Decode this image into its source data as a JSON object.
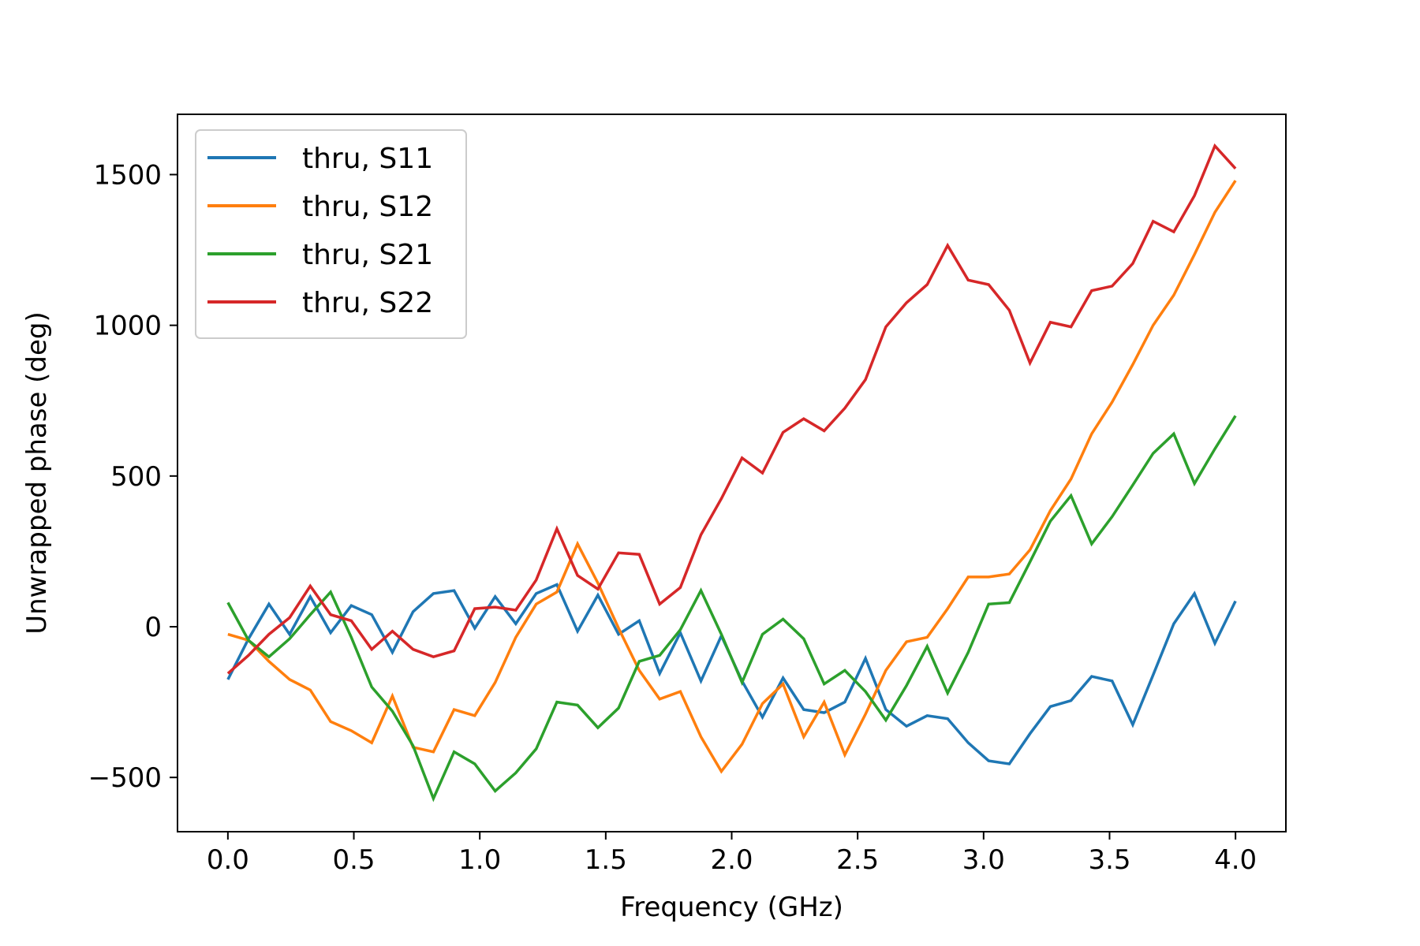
{
  "chart_data": {
    "type": "line",
    "title": "",
    "xlabel": "Frequency (GHz)",
    "ylabel": "Unwrapped phase (deg)",
    "xlim": [
      -0.2,
      4.2
    ],
    "ylim": [
      -680,
      1700
    ],
    "xticks": [
      0.0,
      0.5,
      1.0,
      1.5,
      2.0,
      2.5,
      3.0,
      3.5,
      4.0
    ],
    "xtick_labels": [
      "0.0",
      "0.5",
      "1.0",
      "1.5",
      "2.0",
      "2.5",
      "3.0",
      "3.5",
      "4.0"
    ],
    "yticks": [
      -500,
      0,
      500,
      1000,
      1500
    ],
    "ytick_labels": [
      "−500",
      "0",
      "500",
      "1000",
      "1500"
    ],
    "grid": false,
    "legend_position": "upper-left",
    "x": [
      0.0,
      0.082,
      0.163,
      0.245,
      0.327,
      0.408,
      0.49,
      0.571,
      0.653,
      0.735,
      0.816,
      0.898,
      0.98,
      1.061,
      1.143,
      1.224,
      1.306,
      1.388,
      1.469,
      1.551,
      1.633,
      1.714,
      1.796,
      1.878,
      1.959,
      2.041,
      2.122,
      2.204,
      2.286,
      2.367,
      2.449,
      2.531,
      2.612,
      2.694,
      2.776,
      2.857,
      2.939,
      3.02,
      3.102,
      3.184,
      3.265,
      3.347,
      3.429,
      3.51,
      3.592,
      3.673,
      3.755,
      3.837,
      3.918,
      4.0
    ],
    "series": [
      {
        "name": "thru, S11",
        "color": "#1f77b4",
        "values": [
          -175,
          -40,
          75,
          -25,
          100,
          -20,
          70,
          40,
          -85,
          50,
          110,
          120,
          -5,
          100,
          10,
          110,
          140,
          -15,
          105,
          -25,
          20,
          -155,
          -20,
          -180,
          -30,
          -180,
          -300,
          -170,
          -275,
          -285,
          -250,
          -105,
          -275,
          -330,
          -295,
          -305,
          -385,
          -445,
          -455,
          -355,
          -265,
          -245,
          -165,
          -180,
          -325,
          -160,
          10,
          110,
          -55,
          85
        ]
      },
      {
        "name": "thru, S12",
        "color": "#ff7f0e",
        "values": [
          -25,
          -45,
          -115,
          -175,
          -210,
          -315,
          -345,
          -385,
          -230,
          -400,
          -415,
          -275,
          -295,
          -185,
          -35,
          75,
          115,
          275,
          145,
          -5,
          -145,
          -240,
          -215,
          -365,
          -480,
          -390,
          -255,
          -190,
          -365,
          -250,
          -425,
          -290,
          -145,
          -50,
          -35,
          60,
          165,
          165,
          175,
          255,
          385,
          490,
          640,
          745,
          870,
          1000,
          1100,
          1235,
          1375,
          1480
        ]
      },
      {
        "name": "thru, S21",
        "color": "#2ca02c",
        "values": [
          80,
          -45,
          -100,
          -40,
          40,
          115,
          -35,
          -200,
          -280,
          -395,
          -570,
          -415,
          -455,
          -545,
          -485,
          -405,
          -250,
          -260,
          -335,
          -270,
          -115,
          -95,
          -10,
          120,
          -25,
          -185,
          -25,
          25,
          -40,
          -190,
          -145,
          -215,
          -310,
          -195,
          -65,
          -220,
          -85,
          75,
          80,
          215,
          350,
          435,
          275,
          365,
          470,
          575,
          640,
          475,
          590,
          700
        ]
      },
      {
        "name": "thru, S22",
        "color": "#d62728",
        "values": [
          -155,
          -95,
          -25,
          30,
          135,
          40,
          20,
          -75,
          -15,
          -75,
          -100,
          -80,
          60,
          65,
          55,
          155,
          325,
          170,
          125,
          245,
          240,
          75,
          130,
          305,
          425,
          560,
          510,
          645,
          690,
          650,
          725,
          820,
          995,
          1075,
          1135,
          1265,
          1150,
          1135,
          1050,
          875,
          1010,
          995,
          1115,
          1130,
          1205,
          1345,
          1310,
          1430,
          1595,
          1520
        ]
      }
    ]
  }
}
